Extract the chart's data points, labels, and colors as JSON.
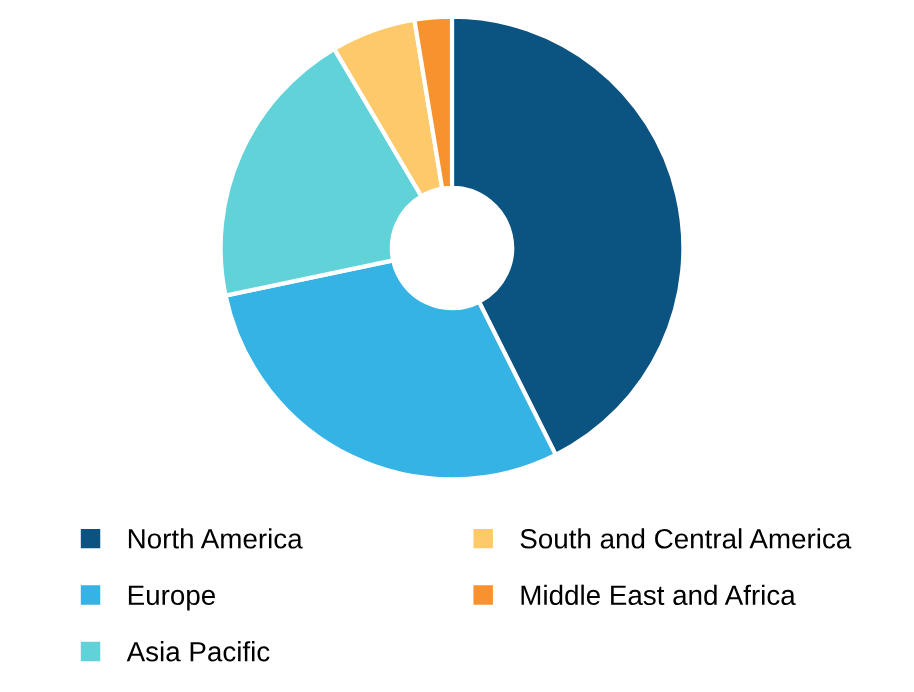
{
  "chart_data": {
    "type": "donut",
    "categories": [
      "North America",
      "Europe",
      "Asia Pacific",
      "South and Central America",
      "Middle East and Africa"
    ],
    "values": [
      42.6,
      29.1,
      19.8,
      5.9,
      2.6
    ],
    "colors": [
      "#0b5380",
      "#35b3e5",
      "#62d2d9",
      "#fdc96a",
      "#f7922e"
    ],
    "legend": "bottom"
  }
}
